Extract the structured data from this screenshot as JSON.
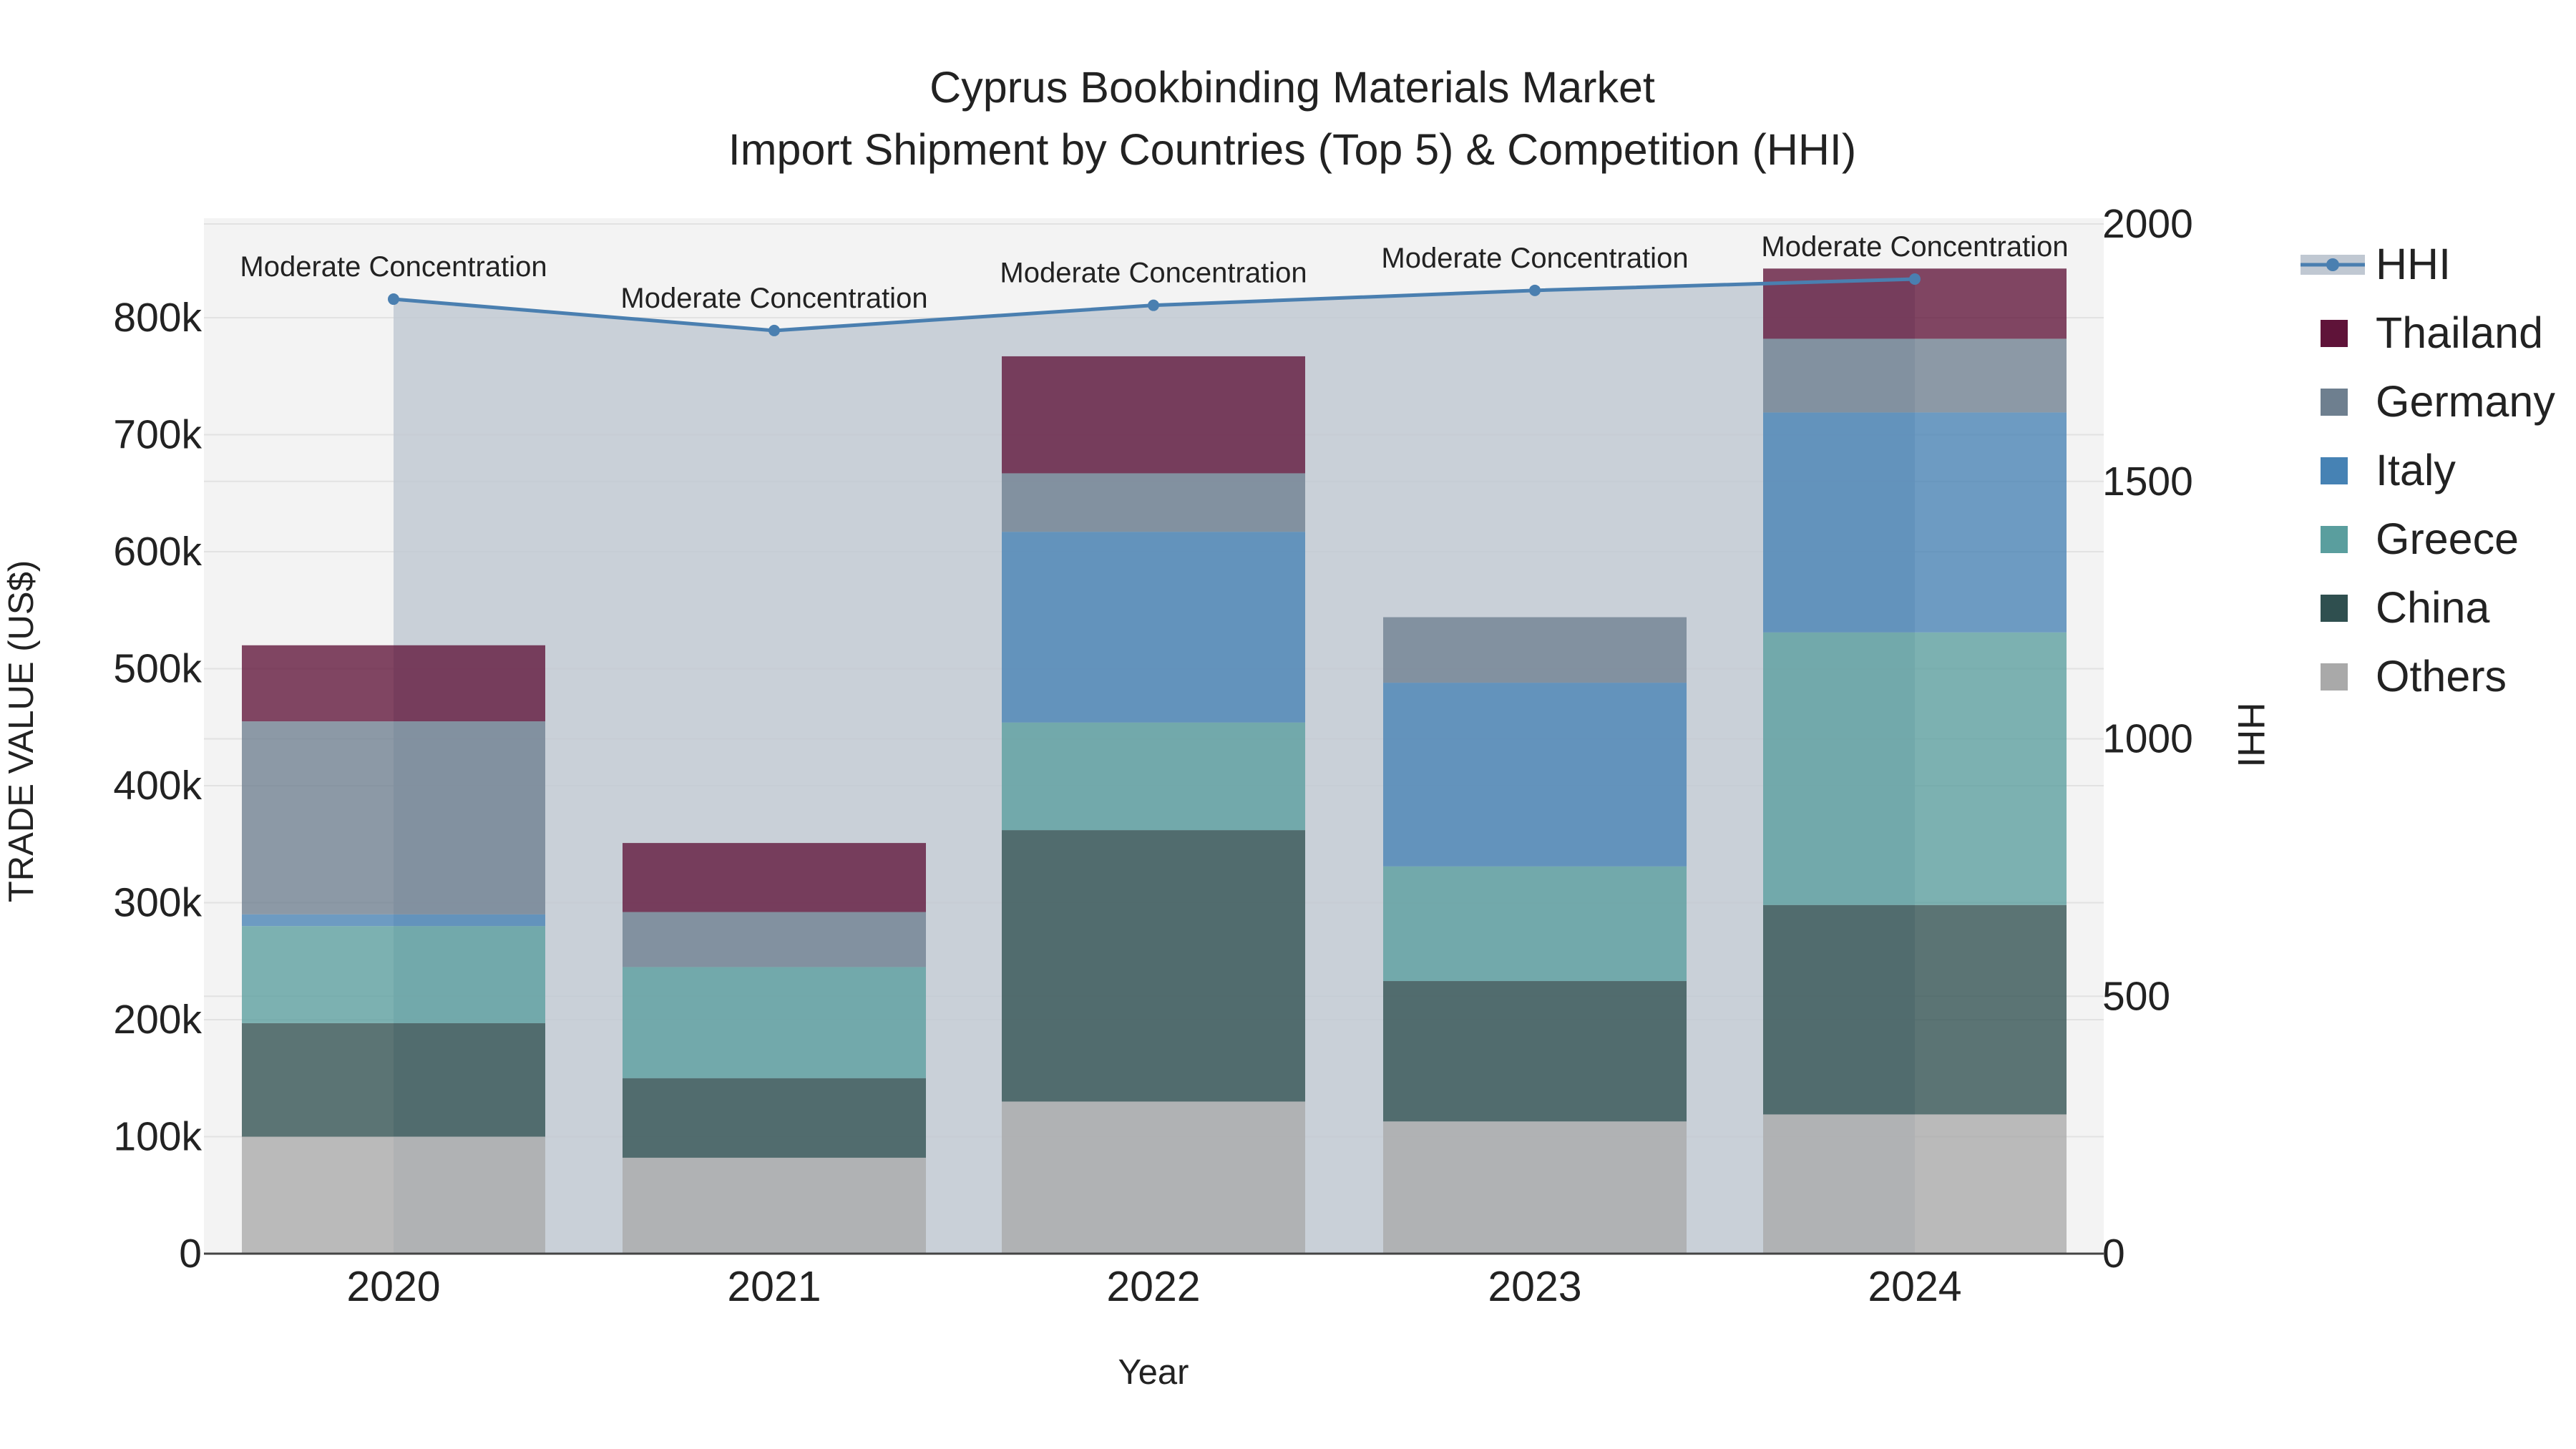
{
  "title_line1": "Cyprus Bookbinding Materials Market",
  "title_line2": "Import Shipment by Countries (Top 5) & Competition (HHI)",
  "colors": {
    "Thailand": "#5f1339",
    "Germany": "#6e7f8f",
    "Italy": "#4682b4",
    "Greece": "#5a9e9e",
    "China": "#2f4f4f",
    "Others": "#a9a9a9",
    "HHI_line": "#4a7fb0",
    "HHI_fill": "#c0c8d2",
    "plot_bg": "#f3f3f3"
  },
  "chart_data": {
    "type": "bar",
    "stacked": true,
    "categories": [
      "2020",
      "2021",
      "2022",
      "2023",
      "2024"
    ],
    "xlabel": "Year",
    "ylabel": "TRADE VALUE (US$)",
    "ylim": [
      0,
      885000
    ],
    "y_ticks": [
      "0",
      "100k",
      "200k",
      "300k",
      "400k",
      "500k",
      "600k",
      "700k",
      "800k"
    ],
    "y2label": "HHI",
    "y2lim": [
      0,
      2000
    ],
    "y2_ticks": [
      "0",
      "500",
      "1000",
      "1500",
      "2000"
    ],
    "legend_position": "right",
    "series": [
      {
        "name": "Others",
        "values": [
          100000,
          82000,
          130000,
          113000,
          119000
        ]
      },
      {
        "name": "China",
        "values": [
          97000,
          68000,
          232000,
          120000,
          179000
        ]
      },
      {
        "name": "Greece",
        "values": [
          83000,
          95000,
          92000,
          98000,
          233000
        ]
      },
      {
        "name": "Italy",
        "values": [
          10000,
          0,
          163000,
          157000,
          188000
        ]
      },
      {
        "name": "Germany",
        "values": [
          165000,
          47000,
          50000,
          56000,
          63000
        ]
      },
      {
        "name": "Thailand",
        "values": [
          65000,
          59000,
          100000,
          0,
          60000
        ]
      }
    ],
    "legend_order": [
      "Thailand",
      "Germany",
      "Italy",
      "Greece",
      "China",
      "Others"
    ],
    "hhi": {
      "name": "HHI",
      "values": [
        1854,
        1793,
        1842,
        1871,
        1893
      ],
      "labels": [
        "Moderate Concentration",
        "Moderate Concentration",
        "Moderate Concentration",
        "Moderate Concentration",
        "Moderate Concentration"
      ]
    }
  }
}
